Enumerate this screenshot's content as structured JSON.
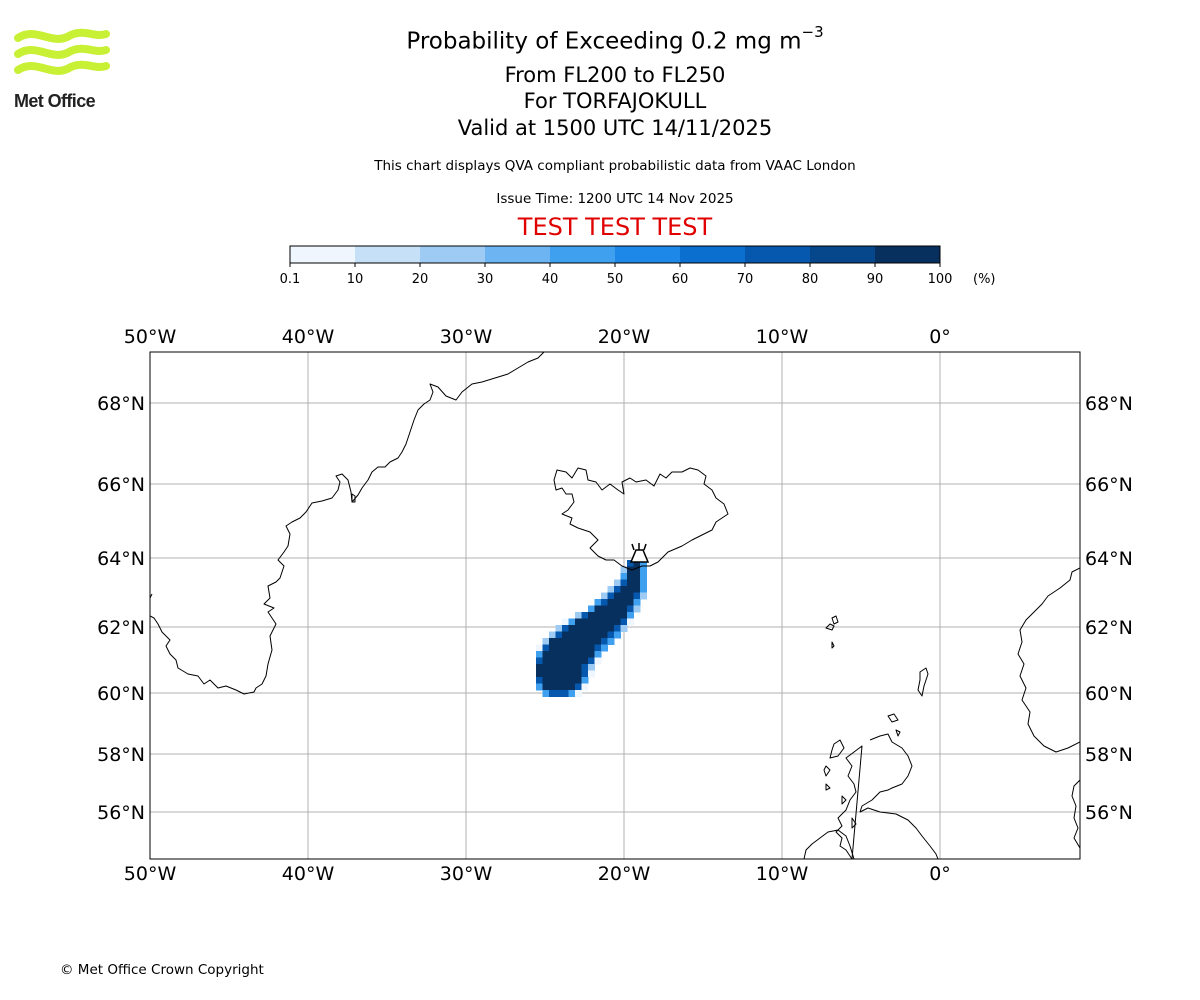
{
  "logo": {
    "text": "Met Office",
    "color": "#c8f034"
  },
  "title": {
    "main": "Probability of Exceeding 0.2 mg m",
    "main_sup": "−3",
    "line2": "From FL200 to FL250",
    "line3": "For TORFAJOKULL",
    "line4": "Valid at 1500 UTC 14/11/2025"
  },
  "description": "This chart displays QVA compliant probabilistic data from VAAC London",
  "issue_time": "Issue Time: 1200 UTC 14 Nov 2025",
  "test_banner": "TEST TEST TEST",
  "colorbar": {
    "ticks": [
      "0.1",
      "10",
      "20",
      "30",
      "40",
      "50",
      "60",
      "70",
      "80",
      "90",
      "100"
    ],
    "unit": "(%)",
    "colors": [
      "#eff6fe",
      "#c6e0f8",
      "#9ecbf4",
      "#6cb4f2",
      "#40a0f0",
      "#1e88e8",
      "#0a6fcf",
      "#0558ad",
      "#06468a",
      "#08305e"
    ]
  },
  "map": {
    "lon_labels": [
      "50°W",
      "40°W",
      "30°W",
      "20°W",
      "10°W",
      "0°"
    ],
    "lat_labels": [
      "68°N",
      "66°N",
      "64°N",
      "62°N",
      "60°N",
      "58°N",
      "56°N"
    ],
    "lon_values": [
      -50,
      -40,
      -30,
      -20,
      -10,
      0
    ],
    "lat_values": [
      68,
      66,
      64,
      62,
      60,
      58,
      56
    ],
    "extent": {
      "lon": [
        -50,
        8.8
      ],
      "lat": [
        54.7,
        69.5
      ]
    },
    "volcano_name": "TORFAJOKULL",
    "volcano_icon": "volcano-icon",
    "plume_color": "#08305e",
    "grid_color": "#b0b0b0"
  },
  "footer": "© Met Office Crown Copyright"
}
